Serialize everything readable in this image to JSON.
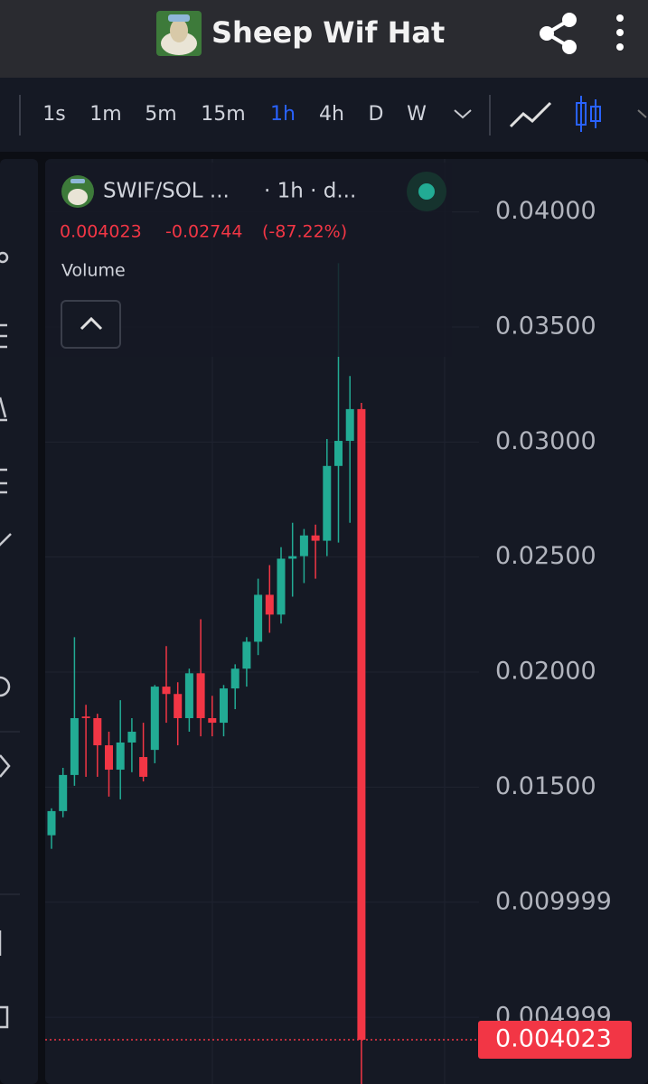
{
  "header": {
    "title": "Sheep Wif Hat"
  },
  "toolbar": {
    "intervals": [
      "1s",
      "1m",
      "5m",
      "15m",
      "1h",
      "4h",
      "D",
      "W"
    ],
    "active_interval": "1h"
  },
  "chart_data": {
    "type": "candlestick",
    "symbol": "SWIF/SOL ...",
    "interval": "· 1h · d...",
    "last_price": 0.004023,
    "change": -0.02744,
    "change_pct": {
      "value": -87.22,
      "label": "(-87.22%)"
    },
    "indicator": "Volume",
    "open": [
      0.01291,
      0.01396,
      0.01553,
      0.01807,
      0.018,
      0.01682,
      0.01576,
      0.01694,
      0.01631,
      0.01662,
      0.01937,
      0.01905,
      0.018,
      0.01995,
      0.018,
      0.0178,
      0.01929,
      0.02015,
      0.02132,
      0.02336,
      0.0225,
      0.02493,
      0.02504,
      0.02594,
      0.02571,
      0.02896,
      0.03005,
      0.03143
    ],
    "high": [
      0.01408,
      0.01584,
      0.02152,
      0.01858,
      0.01819,
      0.01741,
      0.01878,
      0.018,
      0.0178,
      0.01944,
      0.02113,
      0.01956,
      0.02015,
      0.0223,
      0.01897,
      0.01944,
      0.02034,
      0.02152,
      0.02406,
      0.02465,
      0.02543,
      0.02649,
      0.02622,
      0.02641,
      0.03013,
      0.03777,
      0.03287,
      0.0317
    ],
    "low": [
      0.01232,
      0.01369,
      0.01506,
      0.01545,
      0.01545,
      0.01459,
      0.01447,
      0.01565,
      0.01525,
      0.01604,
      0.0178,
      0.01682,
      0.01741,
      0.01721,
      0.01721,
      0.01721,
      0.01839,
      0.01937,
      0.02074,
      0.02171,
      0.02211,
      0.02328,
      0.02387,
      0.02406,
      0.02504,
      0.02563,
      0.02649,
      0.002
    ],
    "close": [
      0.01396,
      0.01553,
      0.018,
      0.018,
      0.01682,
      0.01576,
      0.01694,
      0.01741,
      0.01545,
      0.01937,
      0.01905,
      0.018,
      0.01995,
      0.018,
      0.0178,
      0.01929,
      0.02015,
      0.02132,
      0.02336,
      0.0225,
      0.02493,
      0.02504,
      0.02594,
      0.02571,
      0.02896,
      0.03005,
      0.03143,
      0.004023
    ],
    "up_color": "#22ab94",
    "down_color": "#f23645",
    "ylim": [
      0.0021,
      0.0423
    ],
    "yticks": [
      {
        "value": 0.04,
        "label": "0.04000"
      },
      {
        "value": 0.035,
        "label": "0.03500"
      },
      {
        "value": 0.03,
        "label": "0.03000"
      },
      {
        "value": 0.025,
        "label": "0.02500"
      },
      {
        "value": 0.02,
        "label": "0.02000"
      },
      {
        "value": 0.015,
        "label": "0.01500"
      },
      0.009999,
      0.004999
    ],
    "grid": true
  }
}
